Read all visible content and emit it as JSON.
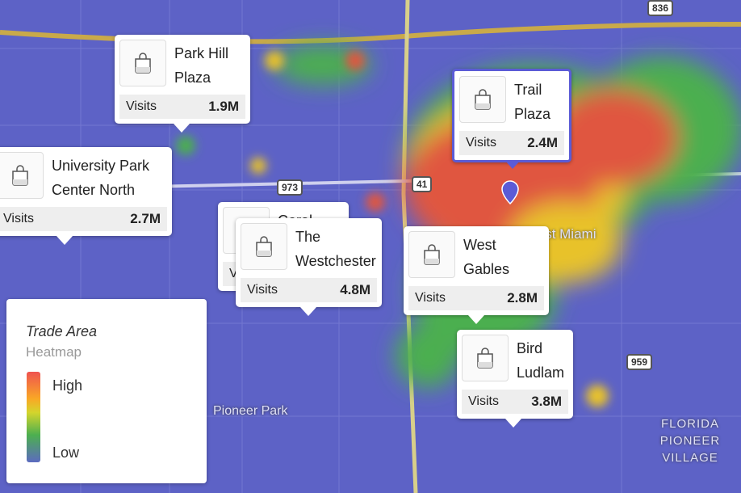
{
  "map_labels": {
    "west_miami": "West Miami",
    "pioneer_park": "Pioneer Park",
    "florida_pioneer_village": "FLORIDA PIONEER VILLAGE",
    "shields": [
      "836",
      "973",
      "41",
      "959"
    ]
  },
  "callouts": [
    {
      "name": "Park Hill Plaza",
      "metric": "Visits",
      "value": "1.9M"
    },
    {
      "name": "University Park Center North",
      "metric": "Visits",
      "value": "2.7M"
    },
    {
      "name": "Coral Way",
      "metric": "Visits",
      "value": ""
    },
    {
      "name": "The Westchester",
      "metric": "Visits",
      "value": "4.8M"
    },
    {
      "name": "Trail Plaza",
      "metric": "Visits",
      "value": "2.4M"
    },
    {
      "name": "West Gables",
      "metric": "Visits",
      "value": "2.8M"
    },
    {
      "name": "Bird Ludlam",
      "metric": "Visits",
      "value": "3.8M"
    }
  ],
  "legend": {
    "title": "Trade Area",
    "subtitle": "Heatmap",
    "high": "High",
    "low": "Low"
  }
}
